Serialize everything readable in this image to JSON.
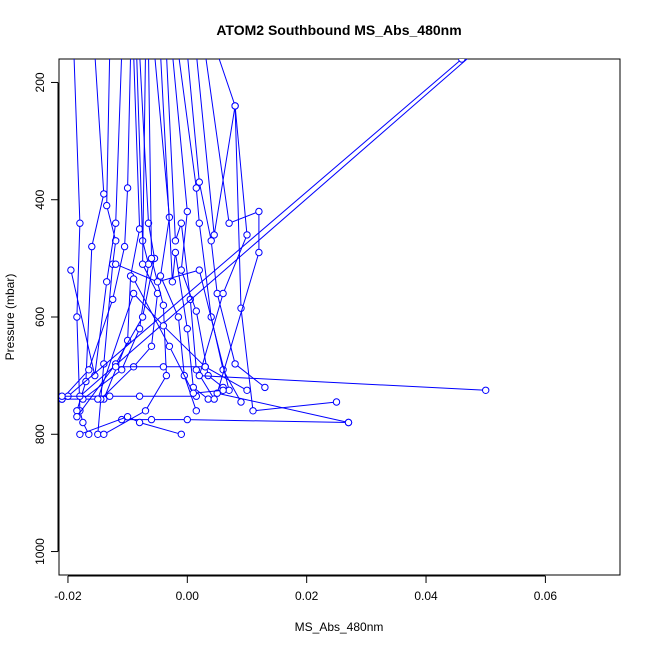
{
  "chart_data": {
    "type": "line",
    "title": "ATOM2 Southbound MS_Abs_480nm",
    "xlabel": "MS_Abs_480nm",
    "ylabel": "Pressure (mbar)",
    "xlim": [
      -0.0215,
      0.0725
    ],
    "ylim": [
      1040,
      160
    ],
    "y_reversed": true,
    "grid": false,
    "legend": "none",
    "xticks": [
      -0.02,
      0.0,
      0.02,
      0.04,
      0.06
    ],
    "xtick_labels": [
      "-0.02",
      "0.00",
      "0.02",
      "0.04",
      "0.06"
    ],
    "yticks": [
      200,
      400,
      600,
      800,
      1000
    ],
    "ytick_labels": [
      "200",
      "400",
      "600",
      "800",
      "1000"
    ],
    "series_color": "#0000ff",
    "series": [
      {
        "x": [
          -0.019,
          -0.018,
          -0.0185,
          -0.018,
          -0.0175,
          -0.0165
        ],
        "y": [
          150,
          440,
          600,
          760,
          780,
          800
        ]
      },
      {
        "x": [
          -0.0155,
          -0.014,
          -0.016,
          -0.017,
          -0.0185
        ],
        "y": [
          150,
          390,
          480,
          710,
          760
        ]
      },
      {
        "x": [
          -0.013,
          -0.0135,
          -0.012,
          -0.0125,
          -0.014,
          -0.015
        ],
        "y": [
          150,
          410,
          470,
          510,
          680,
          800
        ]
      },
      {
        "x": [
          -0.011,
          -0.012,
          -0.0135,
          -0.0155,
          -0.0195
        ],
        "y": [
          150,
          440,
          540,
          700,
          520
        ]
      },
      {
        "x": [
          -0.0095,
          -0.01,
          -0.0105,
          -0.0125,
          -0.0165,
          -0.021
        ],
        "y": [
          150,
          380,
          480,
          570,
          690,
          740
        ]
      },
      {
        "x": [
          -0.009,
          -0.008,
          -0.0095,
          -0.01,
          -0.014,
          -0.021
        ],
        "y": [
          150,
          450,
          530,
          640,
          740,
          740
        ]
      },
      {
        "x": [
          -0.0085,
          -0.0075,
          -0.0065,
          -0.008,
          -0.011,
          -0.0175
        ],
        "y": [
          150,
          470,
          510,
          620,
          690,
          740
        ]
      },
      {
        "x": [
          -0.008,
          -0.0065,
          -0.0055,
          -0.0075,
          -0.012,
          -0.0185
        ],
        "y": [
          150,
          440,
          500,
          600,
          680,
          770
        ]
      },
      {
        "x": [
          -0.007,
          -0.0075,
          -0.005,
          -0.006,
          -0.009,
          -0.0145
        ],
        "y": [
          150,
          510,
          560,
          650,
          685,
          740
        ]
      },
      {
        "x": [
          -0.0065,
          -0.006,
          -0.004,
          -0.0035,
          -0.007,
          -0.014
        ],
        "y": [
          150,
          500,
          580,
          700,
          760,
          800
        ]
      },
      {
        "x": [
          -0.0055,
          -0.003,
          -0.0045,
          -0.0015,
          -0.0005,
          0.0015
        ],
        "y": [
          150,
          430,
          530,
          600,
          700,
          760
        ]
      },
      {
        "x": [
          -0.0045,
          -0.0025,
          -0.002,
          0.0,
          0.001,
          0.0035
        ],
        "y": [
          150,
          540,
          490,
          620,
          720,
          740
        ]
      },
      {
        "x": [
          -0.0035,
          -0.002,
          -0.001,
          0.0005,
          0.0015,
          0.0045
        ],
        "y": [
          150,
          470,
          440,
          570,
          690,
          740
        ]
      },
      {
        "x": [
          -0.0025,
          0.0,
          -0.001,
          0.0015,
          0.0035,
          0.006
        ],
        "y": [
          150,
          420,
          520,
          590,
          700,
          720
        ]
      },
      {
        "x": [
          -0.0015,
          0.0015,
          0.002,
          0.004,
          0.006,
          0.009
        ],
        "y": [
          150,
          380,
          440,
          600,
          690,
          745
        ]
      },
      {
        "x": [
          0.0,
          0.002,
          0.004,
          0.005,
          0.008,
          0.013
        ],
        "y": [
          150,
          370,
          470,
          560,
          680,
          720
        ]
      },
      {
        "x": [
          0.0015,
          0.0045,
          0.008,
          0.009,
          0.011,
          0.025
        ],
        "y": [
          150,
          460,
          240,
          585,
          760,
          745
        ]
      },
      {
        "x": [
          0.003,
          0.007,
          0.012,
          0.012,
          0.005,
          0.027
        ],
        "y": [
          150,
          440,
          420,
          490,
          730,
          780
        ]
      },
      {
        "x": [
          0.005,
          0.008,
          0.01,
          0.006,
          0.002,
          0.05
        ],
        "y": [
          150,
          240,
          460,
          560,
          700,
          725
        ]
      },
      {
        "x": [
          -0.018,
          0.048
        ],
        "y": [
          735,
          150
        ]
      },
      {
        "x": [
          -0.02,
          0.046
        ],
        "y": [
          735,
          160
        ]
      },
      {
        "x": [
          -0.012,
          -0.004,
          0.003,
          0.01
        ],
        "y": [
          685,
          685,
          685,
          725
        ]
      },
      {
        "x": [
          -0.021,
          -0.013,
          -0.008,
          0.0015
        ],
        "y": [
          735,
          735,
          735,
          735
        ]
      },
      {
        "x": [
          -0.011,
          -0.006,
          0.0,
          0.027
        ],
        "y": [
          775,
          775,
          775,
          780
        ]
      },
      {
        "x": [
          -0.018,
          -0.01,
          -0.008,
          -0.001
        ],
        "y": [
          800,
          770,
          780,
          800
        ]
      },
      {
        "x": [
          -0.012,
          -0.005,
          0.002,
          0.007
        ],
        "y": [
          510,
          540,
          520,
          725
        ]
      },
      {
        "x": [
          -0.015,
          -0.009,
          -0.004,
          0.003
        ],
        "y": [
          740,
          560,
          615,
          685
        ]
      },
      {
        "x": [
          -0.009,
          -0.003,
          0.001,
          0.006
        ],
        "y": [
          535,
          650,
          730,
          725
        ]
      }
    ]
  }
}
